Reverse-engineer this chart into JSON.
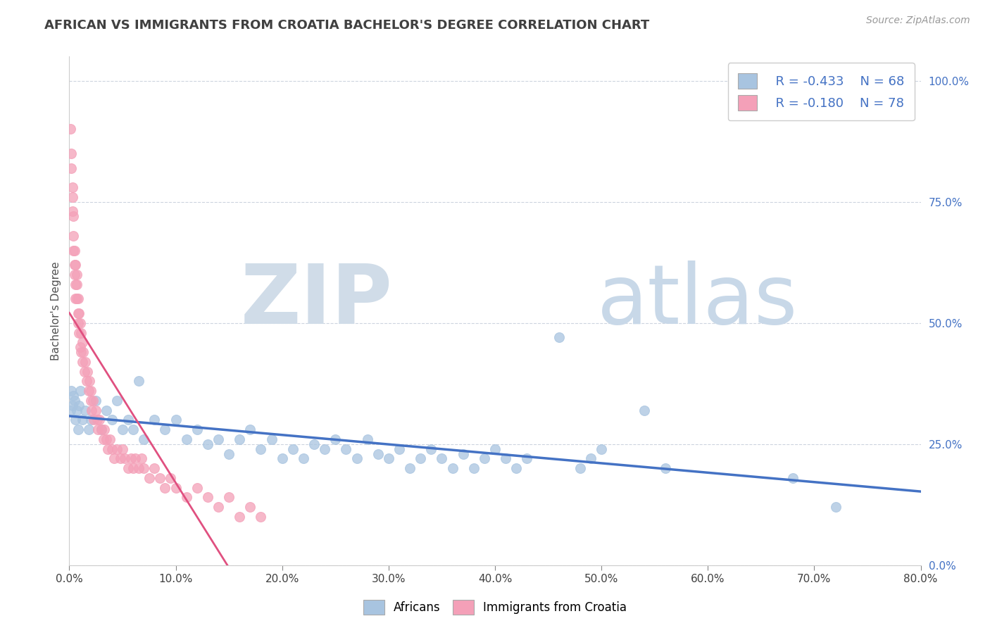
{
  "title": "AFRICAN VS IMMIGRANTS FROM CROATIA BACHELOR'S DEGREE CORRELATION CHART",
  "source_text": "Source: ZipAtlas.com",
  "ylabel": "Bachelor's Degree",
  "xlim": [
    0.0,
    0.8
  ],
  "ylim": [
    0.0,
    1.05
  ],
  "legend_r1": "R = -0.433",
  "legend_n1": "N = 68",
  "legend_r2": "R = -0.180",
  "legend_n2": "N = 78",
  "color_african": "#a8c4e0",
  "color_croatia": "#f4a0b8",
  "color_african_line": "#4472c4",
  "color_croatia_line": "#e05080",
  "color_title": "#404040",
  "color_source": "#999999",
  "color_legend_text": "#4472c4",
  "watermark_zip": "ZIP",
  "watermark_atlas": "atlas",
  "watermark_color_zip": "#d0dce8",
  "watermark_color_atlas": "#c8d8e8",
  "background_color": "#ffffff",
  "grid_color": "#c8d0dc",
  "africans_x": [
    0.001,
    0.002,
    0.003,
    0.004,
    0.005,
    0.006,
    0.007,
    0.008,
    0.009,
    0.01,
    0.012,
    0.015,
    0.018,
    0.02,
    0.025,
    0.03,
    0.035,
    0.04,
    0.045,
    0.05,
    0.055,
    0.06,
    0.065,
    0.07,
    0.08,
    0.09,
    0.1,
    0.11,
    0.12,
    0.13,
    0.14,
    0.15,
    0.16,
    0.17,
    0.18,
    0.19,
    0.2,
    0.21,
    0.22,
    0.23,
    0.24,
    0.25,
    0.26,
    0.27,
    0.28,
    0.29,
    0.3,
    0.31,
    0.32,
    0.33,
    0.34,
    0.35,
    0.36,
    0.37,
    0.38,
    0.39,
    0.4,
    0.41,
    0.42,
    0.43,
    0.46,
    0.48,
    0.49,
    0.5,
    0.54,
    0.56,
    0.68,
    0.72
  ],
  "africans_y": [
    0.32,
    0.36,
    0.33,
    0.35,
    0.34,
    0.3,
    0.32,
    0.28,
    0.33,
    0.36,
    0.3,
    0.32,
    0.28,
    0.3,
    0.34,
    0.28,
    0.32,
    0.3,
    0.34,
    0.28,
    0.3,
    0.28,
    0.38,
    0.26,
    0.3,
    0.28,
    0.3,
    0.26,
    0.28,
    0.25,
    0.26,
    0.23,
    0.26,
    0.28,
    0.24,
    0.26,
    0.22,
    0.24,
    0.22,
    0.25,
    0.24,
    0.26,
    0.24,
    0.22,
    0.26,
    0.23,
    0.22,
    0.24,
    0.2,
    0.22,
    0.24,
    0.22,
    0.2,
    0.23,
    0.2,
    0.22,
    0.24,
    0.22,
    0.2,
    0.22,
    0.47,
    0.2,
    0.22,
    0.24,
    0.32,
    0.2,
    0.18,
    0.12
  ],
  "croatia_x": [
    0.001,
    0.002,
    0.002,
    0.003,
    0.003,
    0.003,
    0.004,
    0.004,
    0.004,
    0.005,
    0.005,
    0.005,
    0.006,
    0.006,
    0.006,
    0.007,
    0.007,
    0.007,
    0.008,
    0.008,
    0.008,
    0.009,
    0.009,
    0.01,
    0.01,
    0.011,
    0.011,
    0.012,
    0.012,
    0.013,
    0.014,
    0.015,
    0.016,
    0.017,
    0.018,
    0.019,
    0.02,
    0.02,
    0.021,
    0.022,
    0.023,
    0.025,
    0.026,
    0.027,
    0.028,
    0.03,
    0.032,
    0.033,
    0.035,
    0.036,
    0.038,
    0.04,
    0.042,
    0.045,
    0.048,
    0.05,
    0.052,
    0.055,
    0.058,
    0.06,
    0.062,
    0.065,
    0.068,
    0.07,
    0.075,
    0.08,
    0.085,
    0.09,
    0.095,
    0.1,
    0.11,
    0.12,
    0.13,
    0.14,
    0.15,
    0.16,
    0.17,
    0.18
  ],
  "croatia_y": [
    0.9,
    0.85,
    0.82,
    0.78,
    0.76,
    0.73,
    0.68,
    0.65,
    0.72,
    0.62,
    0.6,
    0.65,
    0.58,
    0.62,
    0.55,
    0.6,
    0.55,
    0.58,
    0.52,
    0.55,
    0.5,
    0.52,
    0.48,
    0.5,
    0.45,
    0.48,
    0.44,
    0.46,
    0.42,
    0.44,
    0.4,
    0.42,
    0.38,
    0.4,
    0.36,
    0.38,
    0.34,
    0.36,
    0.32,
    0.34,
    0.3,
    0.32,
    0.3,
    0.28,
    0.3,
    0.28,
    0.26,
    0.28,
    0.26,
    0.24,
    0.26,
    0.24,
    0.22,
    0.24,
    0.22,
    0.24,
    0.22,
    0.2,
    0.22,
    0.2,
    0.22,
    0.2,
    0.22,
    0.2,
    0.18,
    0.2,
    0.18,
    0.16,
    0.18,
    0.16,
    0.14,
    0.16,
    0.14,
    0.12,
    0.14,
    0.1,
    0.12,
    0.1
  ]
}
